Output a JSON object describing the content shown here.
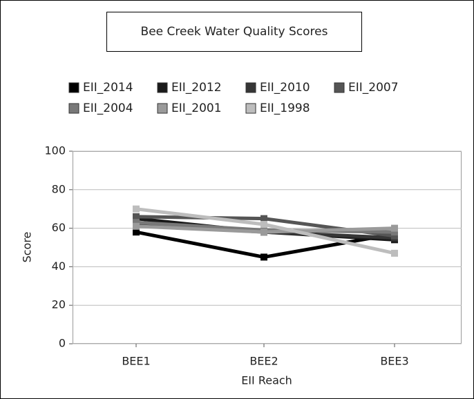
{
  "chart_data": {
    "type": "line",
    "title": "Bee Creek Water Quality Scores",
    "x_label": "EII Reach",
    "y_label": "Score",
    "categories": [
      "BEE1",
      "BEE2",
      "BEE3"
    ],
    "series": [
      {
        "name": "EII_2014",
        "color": "#000000",
        "values": [
          58,
          45,
          57
        ]
      },
      {
        "name": "EII_2012",
        "color": "#1a1a1a",
        "values": [
          65,
          58,
          54
        ]
      },
      {
        "name": "EII_2010",
        "color": "#363636",
        "values": [
          62,
          58,
          55
        ]
      },
      {
        "name": "EII_2007",
        "color": "#555555",
        "values": [
          66,
          65,
          56
        ]
      },
      {
        "name": "EII_2004",
        "color": "#787878",
        "values": [
          63,
          59,
          58
        ]
      },
      {
        "name": "EII_2001",
        "color": "#9a9a9a",
        "values": [
          61,
          58,
          60
        ]
      },
      {
        "name": "EII_1998",
        "color": "#bdbdbd",
        "values": [
          70,
          62,
          47
        ]
      }
    ],
    "ylim": [
      0,
      100
    ],
    "yticks": [
      0,
      20,
      40,
      60,
      80,
      100
    ],
    "grid": true
  }
}
